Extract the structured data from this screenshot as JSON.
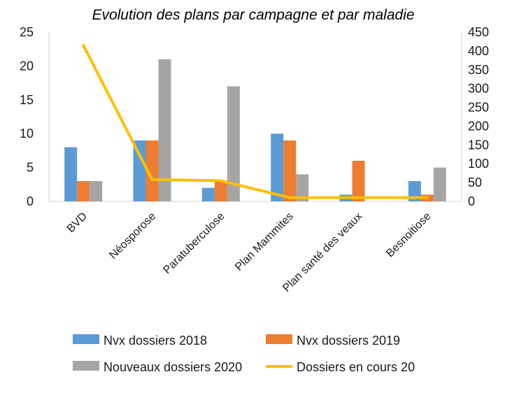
{
  "chart_data": {
    "type": "bar",
    "title": "Evolution des plans par campagne et par maladie",
    "categories": [
      "BVD",
      "Néosporose",
      "Paratuberculose",
      "Plan Mammites",
      "Plan santé des veaux",
      "Besnoitiose"
    ],
    "series": [
      {
        "name": "Nvx dossiers 2018",
        "type": "bar",
        "axis": "left",
        "color": "#5b9bd5",
        "values": [
          8,
          9,
          2,
          10,
          1,
          3
        ]
      },
      {
        "name": "Nvx dossiers 2019",
        "type": "bar",
        "axis": "left",
        "color": "#ed7d31",
        "values": [
          3,
          9,
          3,
          9,
          6,
          1
        ]
      },
      {
        "name": "Nouveaux dossiers 2020",
        "type": "bar",
        "axis": "left",
        "color": "#a5a5a5",
        "values": [
          3,
          21,
          17,
          4,
          0,
          5
        ]
      },
      {
        "name": "Dossiers en cours 20",
        "type": "line",
        "axis": "right",
        "color": "#ffc000",
        "values": [
          415,
          58,
          55,
          10,
          10,
          10
        ]
      }
    ],
    "y_left": {
      "min": 0,
      "max": 25,
      "ticks": [
        0,
        5,
        10,
        15,
        20,
        25
      ]
    },
    "y_right": {
      "min": 0,
      "max": 450,
      "ticks": [
        0,
        50,
        100,
        150,
        200,
        250,
        300,
        350,
        400,
        450
      ]
    },
    "grid": false,
    "legend": "bottom"
  }
}
